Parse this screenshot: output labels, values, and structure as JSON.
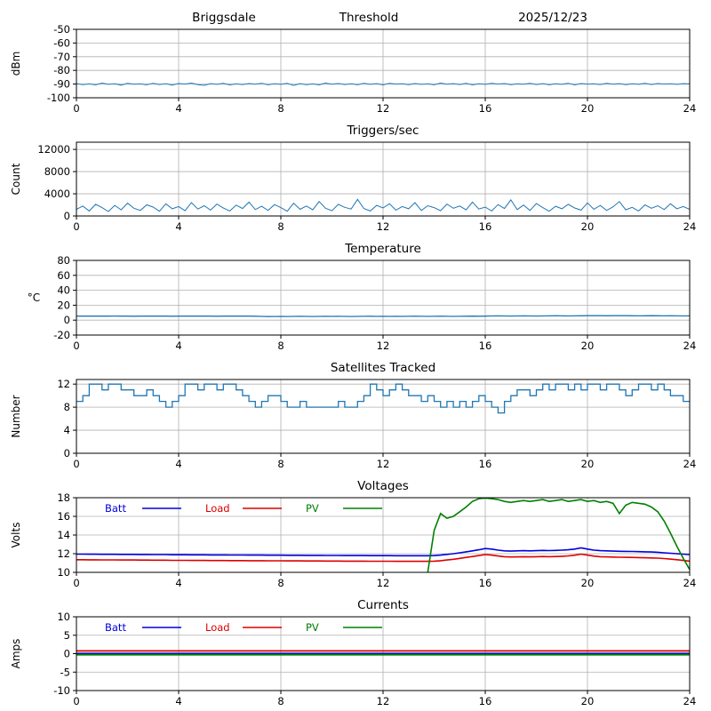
{
  "header": {
    "station": "Briggsdale",
    "mode": "Threshold",
    "date": "2025/12/23"
  },
  "colors": {
    "grid": "#b0b0b0",
    "axis": "#000000",
    "primary": "#1f77b4",
    "batt": "#0000dd",
    "load": "#dd0000",
    "pv": "#008000"
  },
  "chart_data": [
    {
      "type": "line",
      "title": "",
      "ylabel": "dBm",
      "xlim": [
        0,
        24
      ],
      "xticks": [
        0,
        4,
        8,
        12,
        16,
        20,
        24
      ],
      "ylim": [
        -100,
        -50
      ],
      "yticks": [
        -100,
        -90,
        -80,
        -70,
        -60,
        -50
      ],
      "x_start": 0,
      "x_step": 0.25,
      "series": [
        {
          "name": "signal-level",
          "color": "#1f77b4",
          "width": 1.0,
          "values": [
            -89.7,
            -90.4,
            -89.9,
            -90.6,
            -89.3,
            -90.2,
            -89.8,
            -90.8,
            -89.5,
            -90.1,
            -89.9,
            -90.5,
            -89.4,
            -90.3,
            -89.8,
            -90.7,
            -89.6,
            -90.0,
            -89.3,
            -90.4,
            -90.9,
            -89.7,
            -90.2,
            -89.5,
            -90.6,
            -89.9,
            -90.3,
            -89.6,
            -90.1,
            -89.4,
            -90.5,
            -89.8,
            -90.2,
            -89.5,
            -91.0,
            -89.7,
            -90.4,
            -89.9,
            -90.6,
            -89.3,
            -90.1,
            -89.6,
            -90.3,
            -89.8,
            -90.5,
            -89.4,
            -90.2,
            -89.7,
            -90.6,
            -89.5,
            -90.0,
            -89.8,
            -90.4,
            -89.6,
            -90.2,
            -89.9,
            -90.5,
            -89.3,
            -90.1,
            -89.7,
            -90.3,
            -89.5,
            -90.6,
            -89.8,
            -90.2,
            -89.4,
            -90.0,
            -89.6,
            -90.4,
            -89.9,
            -90.1,
            -89.5,
            -90.3,
            -89.7,
            -90.5,
            -89.8,
            -90.2,
            -89.4,
            -90.6,
            -89.6,
            -90.0,
            -89.9,
            -90.3,
            -89.5,
            -90.1,
            -89.7,
            -90.4,
            -89.8,
            -90.2,
            -89.5,
            -90.3,
            -89.6,
            -90.0,
            -89.8,
            -90.2,
            -89.7,
            -89.9
          ]
        }
      ]
    },
    {
      "type": "line",
      "title": "Triggers/sec",
      "ylabel": "Count",
      "xlim": [
        0,
        24
      ],
      "xticks": [
        0,
        4,
        8,
        12,
        16,
        20,
        24
      ],
      "ylim": [
        0,
        13300
      ],
      "yticks": [
        0,
        4000,
        8000,
        12000
      ],
      "x_start": 0,
      "x_step": 0.25,
      "series": [
        {
          "name": "trigger-rate",
          "color": "#1f77b4",
          "width": 1.0,
          "values": [
            1200,
            1800,
            900,
            2100,
            1500,
            800,
            1900,
            1100,
            2300,
            1400,
            1000,
            2000,
            1600,
            850,
            2200,
            1300,
            1700,
            950,
            2400,
            1250,
            1850,
            1050,
            2150,
            1450,
            900,
            1950,
            1350,
            2500,
            1150,
            1750,
            1000,
            2050,
            1500,
            850,
            2300,
            1200,
            1800,
            1100,
            2600,
            1400,
            950,
            2100,
            1550,
            1250,
            3000,
            1350,
            900,
            1900,
            1450,
            2200,
            1050,
            1700,
            1300,
            2400,
            1000,
            1850,
            1500,
            950,
            2150,
            1400,
            1800,
            1100,
            2500,
            1250,
            1600,
            900,
            2050,
            1350,
            2900,
            1150,
            1950,
            1000,
            2250,
            1500,
            850,
            1750,
            1300,
            2100,
            1450,
            1050,
            2350,
            1200,
            1900,
            1000,
            1650,
            2600,
            1100,
            1550,
            900,
            2000,
            1400,
            1850,
            1150,
            2200,
            1300,
            1700,
            1200
          ]
        }
      ]
    },
    {
      "type": "line",
      "title": "Temperature",
      "ylabel": "°C",
      "ylabel_rotate": false,
      "xlim": [
        0,
        24
      ],
      "xticks": [
        0,
        4,
        8,
        12,
        16,
        20,
        24
      ],
      "ylim": [
        -20,
        80
      ],
      "yticks": [
        -20,
        0,
        20,
        40,
        60,
        80
      ],
      "x_start": 0,
      "x_step": 0.25,
      "series": [
        {
          "name": "enclosure-temp",
          "color": "#1f77b4",
          "width": 1.3,
          "values": [
            5.4,
            5.3,
            5.5,
            5.4,
            5.3,
            5.4,
            5.5,
            5.3,
            5.4,
            5.2,
            5.3,
            5.4,
            5.5,
            5.4,
            5.3,
            5.2,
            5.4,
            5.3,
            5.5,
            5.4,
            5.3,
            5.4,
            5.2,
            5.3,
            5.4,
            5.5,
            5.3,
            5.4,
            5.2,
            5.0,
            4.8,
            4.9,
            5.0,
            4.9,
            5.0,
            5.1,
            5.0,
            4.9,
            5.0,
            5.1,
            5.0,
            5.1,
            5.0,
            4.9,
            5.0,
            5.1,
            5.2,
            5.0,
            5.1,
            5.0,
            5.1,
            5.0,
            5.1,
            5.2,
            5.1,
            5.0,
            5.1,
            5.2,
            5.1,
            5.0,
            5.1,
            5.2,
            5.3,
            5.2,
            5.4,
            5.6,
            5.7,
            5.6,
            5.5,
            5.6,
            5.7,
            5.6,
            5.5,
            5.6,
            5.7,
            5.8,
            5.7,
            5.6,
            5.7,
            5.8,
            5.9,
            6.0,
            5.9,
            5.8,
            5.9,
            6.0,
            5.9,
            5.8,
            5.7,
            5.8,
            5.9,
            5.8,
            5.7,
            5.8,
            5.7,
            5.6,
            5.7
          ]
        }
      ]
    },
    {
      "type": "line",
      "title": "Satellites Tracked",
      "ylabel": "Number",
      "xlim": [
        0,
        24
      ],
      "xticks": [
        0,
        4,
        8,
        12,
        16,
        20,
        24
      ],
      "ylim": [
        0,
        12.8
      ],
      "yticks": [
        0,
        4,
        8,
        12
      ],
      "x_start": 0,
      "x_step": 0.25,
      "series": [
        {
          "name": "satellite-count",
          "color": "#1f77b4",
          "width": 1.3,
          "step": true,
          "values": [
            9,
            10,
            12,
            12,
            11,
            12,
            12,
            11,
            11,
            10,
            10,
            11,
            10,
            9,
            8,
            9,
            10,
            12,
            12,
            11,
            12,
            12,
            11,
            12,
            12,
            11,
            10,
            9,
            8,
            9,
            10,
            10,
            9,
            8,
            8,
            9,
            8,
            8,
            8,
            8,
            8,
            9,
            8,
            8,
            9,
            10,
            12,
            11,
            10,
            11,
            12,
            11,
            10,
            10,
            9,
            10,
            9,
            8,
            9,
            8,
            9,
            8,
            9,
            10,
            9,
            8,
            7,
            9,
            10,
            11,
            11,
            10,
            11,
            12,
            11,
            12,
            12,
            11,
            12,
            11,
            12,
            12,
            11,
            12,
            12,
            11,
            10,
            11,
            12,
            12,
            11,
            12,
            11,
            10,
            10,
            9,
            9
          ]
        }
      ]
    },
    {
      "type": "line",
      "title": "Voltages",
      "ylabel": "Volts",
      "xlim": [
        0,
        24
      ],
      "xticks": [
        0,
        4,
        8,
        12,
        16,
        20,
        24
      ],
      "ylim": [
        10,
        18
      ],
      "yticks": [
        10,
        12,
        14,
        16,
        18
      ],
      "x_start": 0,
      "x_step": 0.25,
      "legend": [
        {
          "label": "Batt",
          "color": "#0000dd"
        },
        {
          "label": "Load",
          "color": "#dd0000"
        },
        {
          "label": "PV",
          "color": "#008000"
        }
      ],
      "series": [
        {
          "name": "battery-voltage",
          "color": "#0000dd",
          "width": 1.6,
          "values": [
            11.95,
            11.95,
            11.94,
            11.94,
            11.93,
            11.93,
            11.93,
            11.92,
            11.92,
            11.92,
            11.91,
            11.91,
            11.9,
            11.9,
            11.9,
            11.89,
            11.89,
            11.89,
            11.88,
            11.88,
            11.88,
            11.87,
            11.87,
            11.87,
            11.86,
            11.86,
            11.86,
            11.85,
            11.85,
            11.85,
            11.84,
            11.84,
            11.84,
            11.83,
            11.83,
            11.83,
            11.82,
            11.82,
            11.82,
            11.81,
            11.81,
            11.81,
            11.8,
            11.8,
            11.8,
            11.8,
            11.79,
            11.79,
            11.79,
            11.79,
            11.78,
            11.78,
            11.78,
            11.78,
            11.78,
            11.78,
            11.8,
            11.85,
            11.92,
            12.0,
            12.1,
            12.2,
            12.3,
            12.42,
            12.55,
            12.5,
            12.38,
            12.3,
            12.28,
            12.3,
            12.32,
            12.3,
            12.32,
            12.35,
            12.33,
            12.35,
            12.38,
            12.42,
            12.5,
            12.62,
            12.5,
            12.38,
            12.32,
            12.3,
            12.28,
            12.26,
            12.25,
            12.24,
            12.22,
            12.2,
            12.18,
            12.15,
            12.1,
            12.05,
            12.0,
            11.95,
            11.9
          ]
        },
        {
          "name": "load-voltage",
          "color": "#dd0000",
          "width": 1.6,
          "values": [
            11.35,
            11.35,
            11.34,
            11.34,
            11.33,
            11.33,
            11.33,
            11.32,
            11.32,
            11.32,
            11.31,
            11.31,
            11.3,
            11.3,
            11.3,
            11.29,
            11.29,
            11.29,
            11.28,
            11.28,
            11.28,
            11.27,
            11.27,
            11.27,
            11.26,
            11.26,
            11.26,
            11.25,
            11.25,
            11.25,
            11.24,
            11.24,
            11.24,
            11.23,
            11.23,
            11.23,
            11.22,
            11.22,
            11.22,
            11.21,
            11.21,
            11.21,
            11.2,
            11.2,
            11.2,
            11.2,
            11.19,
            11.19,
            11.19,
            11.19,
            11.18,
            11.18,
            11.18,
            11.18,
            11.18,
            11.18,
            11.2,
            11.25,
            11.32,
            11.4,
            11.5,
            11.6,
            11.7,
            11.8,
            11.9,
            11.85,
            11.75,
            11.68,
            11.65,
            11.66,
            11.68,
            11.66,
            11.68,
            11.7,
            11.68,
            11.7,
            11.72,
            11.76,
            11.84,
            11.95,
            11.85,
            11.74,
            11.68,
            11.66,
            11.64,
            11.62,
            11.61,
            11.6,
            11.58,
            11.56,
            11.54,
            11.52,
            11.48,
            11.42,
            11.35,
            11.28,
            11.2
          ]
        },
        {
          "name": "pv-voltage",
          "color": "#008000",
          "width": 1.6,
          "x": [
            13.75,
            14,
            14.25,
            14.5,
            14.75,
            15,
            15.25,
            15.5,
            15.75,
            16,
            16.25,
            16.5,
            16.75,
            17,
            17.25,
            17.5,
            17.75,
            18,
            18.25,
            18.5,
            18.75,
            19,
            19.25,
            19.5,
            19.75,
            20,
            20.25,
            20.5,
            20.75,
            21,
            21.25,
            21.5,
            21.75,
            22,
            22.25,
            22.5,
            22.75,
            23,
            23.25,
            23.5,
            23.75,
            24
          ],
          "values": [
            10.0,
            14.5,
            16.3,
            15.8,
            16.0,
            16.5,
            17.0,
            17.6,
            17.9,
            17.95,
            17.9,
            17.8,
            17.6,
            17.5,
            17.6,
            17.7,
            17.6,
            17.7,
            17.8,
            17.6,
            17.7,
            17.8,
            17.6,
            17.7,
            17.8,
            17.6,
            17.7,
            17.5,
            17.6,
            17.4,
            16.3,
            17.2,
            17.5,
            17.4,
            17.3,
            17.0,
            16.5,
            15.5,
            14.2,
            12.8,
            11.5,
            10.3
          ]
        }
      ]
    },
    {
      "type": "line",
      "title": "Currents",
      "ylabel": "Amps",
      "xlim": [
        0,
        24
      ],
      "xticks": [
        0,
        4,
        8,
        12,
        16,
        20,
        24
      ],
      "ylim": [
        -10,
        10
      ],
      "yticks": [
        -10,
        -5,
        0,
        5,
        10
      ],
      "x_start": 0,
      "x_step": 0.25,
      "legend": [
        {
          "label": "Batt",
          "color": "#0000dd"
        },
        {
          "label": "Load",
          "color": "#dd0000"
        },
        {
          "label": "PV",
          "color": "#008000"
        }
      ],
      "series": [
        {
          "name": "battery-current",
          "color": "#0000dd",
          "width": 1.8,
          "x": [
            0,
            24
          ],
          "values": [
            0.05,
            0.05
          ]
        },
        {
          "name": "load-current",
          "color": "#dd0000",
          "width": 1.8,
          "x": [
            0,
            24
          ],
          "values": [
            0.75,
            0.75
          ]
        },
        {
          "name": "pv-current",
          "color": "#008000",
          "width": 1.8,
          "x": [
            0,
            24
          ],
          "values": [
            -0.3,
            -0.3
          ]
        }
      ]
    }
  ]
}
